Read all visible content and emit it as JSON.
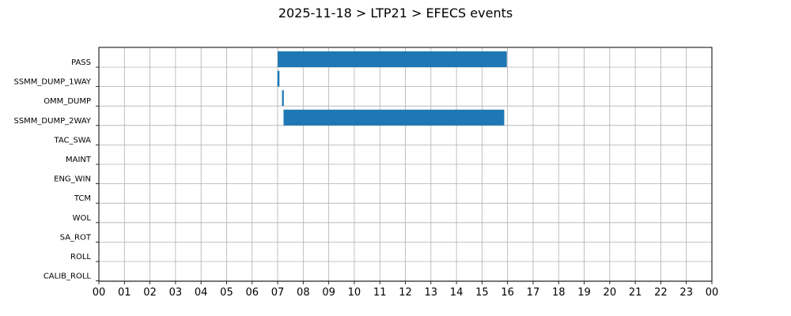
{
  "chart_data": {
    "type": "bar",
    "orientation": "horizontal",
    "title": "2025-11-18 > LTP21 > EFECS events",
    "xlabel": "",
    "ylabel": "",
    "x_tick_labels": [
      "00",
      "01",
      "02",
      "03",
      "04",
      "05",
      "06",
      "07",
      "08",
      "09",
      "10",
      "11",
      "12",
      "13",
      "14",
      "15",
      "16",
      "17",
      "18",
      "19",
      "20",
      "21",
      "22",
      "23",
      "00"
    ],
    "xlim": [
      0,
      24
    ],
    "grid": true,
    "bar_color": "#1f77b4",
    "categories": [
      "PASS",
      "SSMM_DUMP_1WAY",
      "OMM_DUMP",
      "SSMM_DUMP_2WAY",
      "TAC_SWA",
      "MAINT",
      "ENG_WIN",
      "TCM",
      "WOL",
      "SA_ROT",
      "ROLL",
      "CALIB_ROLL"
    ],
    "events": [
      {
        "category": "PASS",
        "start": 7.0,
        "end": 15.97
      },
      {
        "category": "SSMM_DUMP_1WAY",
        "start": 6.99,
        "end": 7.07
      },
      {
        "category": "OMM_DUMP",
        "start": 7.17,
        "end": 7.24
      },
      {
        "category": "SSMM_DUMP_2WAY",
        "start": 7.23,
        "end": 15.87
      }
    ]
  }
}
